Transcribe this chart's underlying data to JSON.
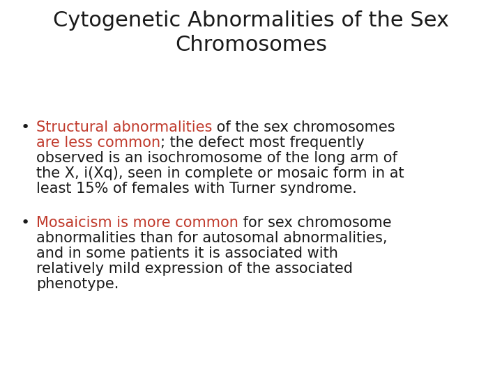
{
  "title_line1": "Cytogenetic Abnormalities of the Sex",
  "title_line2": "Chromosomes",
  "title_color": "#1a1a1a",
  "title_fontsize": 22,
  "background_color": "#ffffff",
  "bullet1": {
    "lines": [
      [
        [
          "Structural abnormalities",
          "#c0392b"
        ],
        [
          " of the sex chromosomes",
          "#1a1a1a"
        ]
      ],
      [
        [
          "are less common",
          "#c0392b"
        ],
        [
          "; the defect most frequently",
          "#1a1a1a"
        ]
      ],
      [
        [
          "observed is an isochromosome of the long arm of",
          "#1a1a1a"
        ]
      ],
      [
        [
          "the X, i(Xq), seen in complete or mosaic form in at",
          "#1a1a1a"
        ]
      ],
      [
        [
          "least 15% of females with Turner syndrome.",
          "#1a1a1a"
        ]
      ]
    ]
  },
  "bullet2": {
    "lines": [
      [
        [
          "Mosaicism is more common",
          "#c0392b"
        ],
        [
          " for sex chromosome",
          "#1a1a1a"
        ]
      ],
      [
        [
          "abnormalities than for autosomal abnormalities,",
          "#1a1a1a"
        ]
      ],
      [
        [
          "and in some patients it is associated with",
          "#1a1a1a"
        ]
      ],
      [
        [
          "relatively mild expression of the associated",
          "#1a1a1a"
        ]
      ],
      [
        [
          "phenotype.",
          "#1a1a1a"
        ]
      ]
    ]
  },
  "bullet_color": "#1a1a1a",
  "body_fontsize": 15,
  "font_family": "DejaVu Sans"
}
